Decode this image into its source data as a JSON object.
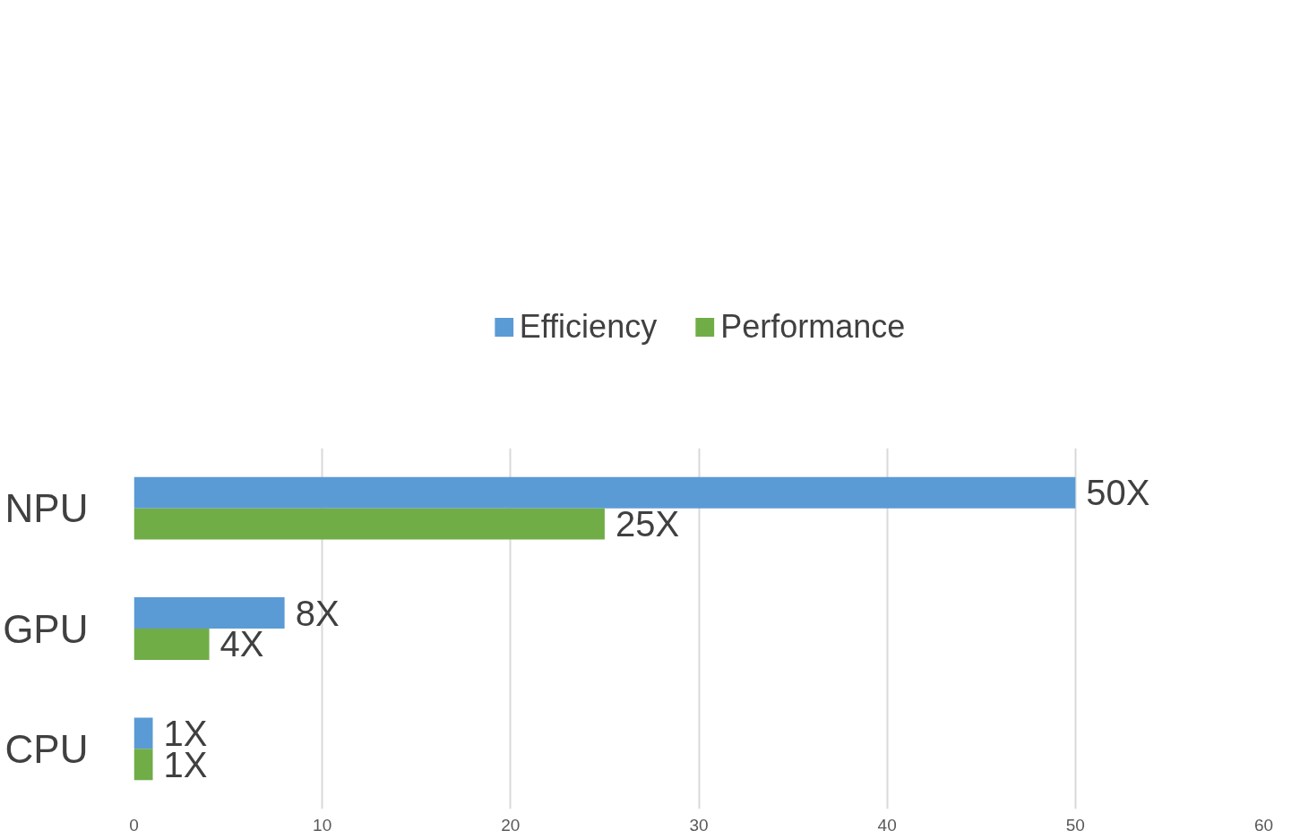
{
  "chart_data": {
    "type": "bar",
    "orientation": "horizontal",
    "categories": [
      "NPU",
      "GPU",
      "CPU"
    ],
    "series": [
      {
        "name": "Efficiency",
        "color": "#5b9bd5",
        "values": [
          50,
          8,
          1
        ],
        "value_labels": [
          "50X",
          "8X",
          "1X"
        ]
      },
      {
        "name": "Performance",
        "color": "#70ad47",
        "values": [
          25,
          4,
          1
        ],
        "value_labels": [
          "25X",
          "4X",
          "1X"
        ]
      }
    ],
    "xlim": [
      0,
      60
    ],
    "xticks": [
      0,
      10,
      20,
      30,
      40,
      50,
      60
    ],
    "grid": "x",
    "legend": "top"
  }
}
